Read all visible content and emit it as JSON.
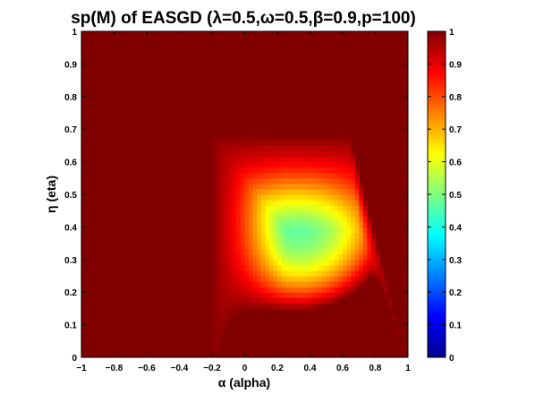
{
  "chart_data": {
    "type": "heatmap",
    "title": "sp(M) of EASGD (λ=0.5,ω=0.5,β=0.9,p=100)",
    "xlabel": "α (alpha)",
    "ylabel": "η (eta)",
    "xlim": [
      -1,
      1
    ],
    "ylim": [
      0,
      1
    ],
    "xticks": [
      "−1",
      "−0.8",
      "−0.6",
      "−0.4",
      "−0.2",
      "0",
      "0.2",
      "0.4",
      "0.6",
      "0.8",
      "1"
    ],
    "yticks": [
      "0",
      "0.1",
      "0.2",
      "0.3",
      "0.4",
      "0.5",
      "0.6",
      "0.7",
      "0.8",
      "0.9",
      "1"
    ],
    "colorbar": {
      "colormap": "jet",
      "range": [
        0,
        1
      ],
      "ticks": [
        "0",
        "0.1",
        "0.2",
        "0.3",
        "0.4",
        "0.5",
        "0.6",
        "0.7",
        "0.8",
        "0.9",
        "1"
      ]
    },
    "value_field": {
      "description": "sp(M) over (alpha, eta)",
      "max_value": 1.0,
      "min_value_approx": 0.45,
      "min_location": {
        "alpha": 0.3,
        "eta": 0.4
      },
      "notable": "spectral radius below 1 only in a bounded region roughly 0 < alpha < 1, 0 < eta < 0.68; equals 1 elsewhere"
    }
  }
}
